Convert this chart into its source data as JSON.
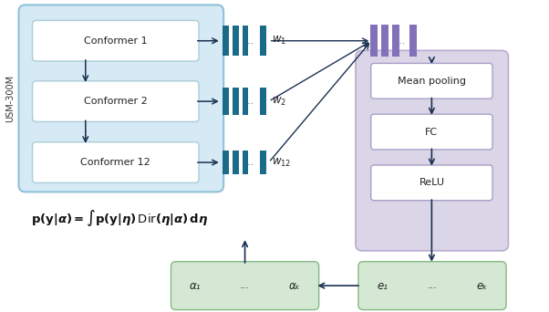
{
  "fig_width": 6.02,
  "fig_height": 3.42,
  "dpi": 100,
  "bg_color": "#ffffff",
  "usm_label": "USM-300M",
  "conformer_labels": [
    "Conformer 1",
    "Conformer 2",
    "Conformer 12"
  ],
  "weight_labels": [
    "w",
    "w",
    "w"
  ],
  "weight_subs": [
    "1",
    "2",
    "12"
  ],
  "teal_color": "#1a6b8a",
  "purple_color": "#8270b8",
  "light_blue_bg": "#d6eaf5",
  "light_purple_bg": "#cec8e0",
  "light_green_bg": "#d4e8d4",
  "arrow_color": "#1a3050",
  "process_labels": [
    "Mean pooling",
    "FC",
    "ReLU"
  ],
  "bottom_labels_alpha": [
    "α₁",
    "...",
    "αₖ"
  ],
  "bottom_labels_e": [
    "e₁",
    "...",
    "eₖ"
  ],
  "xmax": 10.0,
  "ymax": 5.8
}
